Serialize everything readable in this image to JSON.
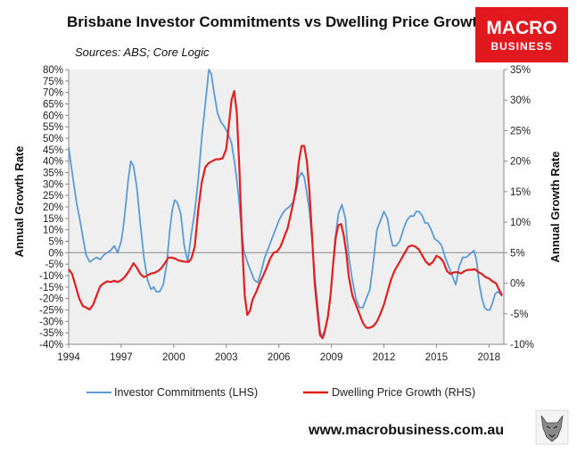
{
  "chart_data": {
    "type": "line",
    "title": "Brisbane Investor Commitments vs Dwelling Price Growth",
    "subtitle": "Sources: ABS; Core Logic",
    "ylabel_left": "Annual Growth Rate",
    "ylabel_right": "Annual Growth Rate",
    "x_range": [
      1994.0,
      2018.85
    ],
    "x_ticks": [
      1994,
      1997,
      2000,
      2003,
      2006,
      2009,
      2012,
      2015,
      2018
    ],
    "x_tick_labels": [
      "1994",
      "1997",
      "2000",
      "2003",
      "2006",
      "2009",
      "2012",
      "2015",
      "2018"
    ],
    "ylim_left": [
      -40,
      80
    ],
    "y_ticks_left": [
      80,
      75,
      70,
      65,
      60,
      55,
      50,
      45,
      40,
      35,
      30,
      25,
      20,
      15,
      10,
      5,
      0,
      -5,
      -10,
      -15,
      -20,
      -25,
      -30,
      -35,
      -40
    ],
    "y_tick_labels_left": [
      "80%",
      "75%",
      "70%",
      "65%",
      "60%",
      "55%",
      "50%",
      "45%",
      "40%",
      "35%",
      "30%",
      "25%",
      "20%",
      "15%",
      "10%",
      "5%",
      "0%",
      "-5%",
      "-10%",
      "-15%",
      "-20%",
      "-25%",
      "-30%",
      "-35%",
      "-40%"
    ],
    "ylim_right": [
      -10,
      35
    ],
    "y_ticks_right": [
      35,
      30,
      25,
      20,
      15,
      10,
      5,
      0,
      -5,
      -10
    ],
    "y_tick_labels_right": [
      "35%",
      "30%",
      "25%",
      "20%",
      "15%",
      "10%",
      "5%",
      "0%",
      "-5%",
      "-10%"
    ],
    "grid": false,
    "legend_position": "bottom",
    "series": [
      {
        "name": "Investor Commitments (LHS)",
        "axis": "left",
        "color": "#5b9bd5",
        "x": [
          1994.0,
          1994.2,
          1994.45,
          1994.7,
          1994.85,
          1995.0,
          1995.2,
          1995.4,
          1995.6,
          1995.8,
          1996.0,
          1996.2,
          1996.4,
          1996.6,
          1996.8,
          1997.0,
          1997.1,
          1997.25,
          1997.4,
          1997.55,
          1997.7,
          1997.9,
          1998.1,
          1998.3,
          1998.5,
          1998.7,
          1998.85,
          1999.0,
          1999.2,
          1999.4,
          1999.6,
          1999.75,
          1999.9,
          2000.05,
          2000.2,
          2000.4,
          2000.6,
          2000.8,
          2001.0,
          2001.2,
          2001.4,
          2001.6,
          2001.8,
          2001.9,
          2002.0,
          2002.15,
          2002.3,
          2002.5,
          2002.7,
          2002.9,
          2003.1,
          2003.3,
          2003.5,
          2003.7,
          2003.85,
          2004.0,
          2004.2,
          2004.4,
          2004.6,
          2004.8,
          2005.0,
          2005.2,
          2005.4,
          2005.6,
          2005.8,
          2006.0,
          2006.2,
          2006.4,
          2006.6,
          2006.8,
          2007.0,
          2007.15,
          2007.3,
          2007.45,
          2007.6,
          2007.75,
          2007.9,
          2008.05,
          2008.2,
          2008.35,
          2008.5,
          2008.6,
          2008.7,
          2008.85,
          2009.0,
          2009.2,
          2009.4,
          2009.6,
          2009.8,
          2009.9,
          2010.0,
          2010.2,
          2010.4,
          2010.6,
          2010.8,
          2011.0,
          2011.2,
          2011.4,
          2011.6,
          2011.8,
          2012.0,
          2012.2,
          2012.35,
          2012.5,
          2012.7,
          2012.9,
          2013.1,
          2013.3,
          2013.5,
          2013.7,
          2013.85,
          2014.0,
          2014.2,
          2014.35,
          2014.5,
          2014.7,
          2014.9,
          2015.1,
          2015.3,
          2015.5,
          2015.7,
          2015.9,
          2016.1,
          2016.3,
          2016.5,
          2016.7,
          2016.85,
          2017.0,
          2017.15,
          2017.3,
          2017.45,
          2017.6,
          2017.75,
          2017.9,
          2018.05,
          2018.2,
          2018.35,
          2018.5,
          2018.65,
          2018.75
        ],
        "y": [
          46,
          35,
          22,
          12,
          5,
          -1,
          -4,
          -3,
          -2,
          -3,
          -1,
          0,
          1,
          3,
          0,
          5,
          10,
          20,
          32,
          40,
          38,
          28,
          12,
          -2,
          -12,
          -16,
          -15,
          -17,
          -17,
          -14,
          -5,
          8,
          18,
          23,
          22,
          17,
          3,
          -4,
          8,
          18,
          32,
          50,
          65,
          72,
          80,
          78,
          70,
          61,
          57,
          55,
          52,
          48,
          38,
          25,
          12,
          1,
          -4,
          -8,
          -12,
          -13,
          -8,
          -2,
          2,
          6,
          10,
          14,
          17,
          19,
          20,
          22,
          27,
          33,
          35,
          33,
          26,
          18,
          5,
          -10,
          -22,
          -34,
          -37,
          -36,
          -32,
          -26,
          -15,
          5,
          17,
          21,
          15,
          6,
          -2,
          -12,
          -20,
          -24,
          -24,
          -20,
          -16,
          -4,
          10,
          14,
          18,
          15,
          8,
          3,
          3,
          5,
          10,
          14,
          16,
          16,
          18,
          18,
          16,
          13,
          13,
          10,
          6,
          5,
          3,
          -2,
          -6,
          -10,
          -14,
          -6,
          -2,
          -2,
          -1,
          0,
          1,
          -4,
          -14,
          -20,
          -24,
          -25,
          -25,
          -22,
          -18,
          -17,
          -18,
          -19
        ]
      },
      {
        "name": "Dwelling Price Growth (RHS)",
        "axis": "right",
        "color": "#e02020",
        "x": [
          1994.0,
          1994.2,
          1994.4,
          1994.6,
          1994.8,
          1995.0,
          1995.2,
          1995.4,
          1995.6,
          1995.8,
          1996.0,
          1996.2,
          1996.4,
          1996.6,
          1996.8,
          1997.0,
          1997.2,
          1997.4,
          1997.55,
          1997.7,
          1997.9,
          1998.1,
          1998.3,
          1998.5,
          1998.7,
          1998.9,
          1999.1,
          1999.3,
          1999.5,
          1999.7,
          1999.9,
          2000.1,
          2000.3,
          2000.5,
          2000.7,
          2000.85,
          2001.0,
          2001.2,
          2001.4,
          2001.6,
          2001.8,
          2002.0,
          2002.2,
          2002.4,
          2002.6,
          2002.8,
          2003.0,
          2003.15,
          2003.3,
          2003.45,
          2003.6,
          2003.75,
          2003.9,
          2004.05,
          2004.2,
          2004.35,
          2004.5,
          2004.7,
          2004.9,
          2005.1,
          2005.3,
          2005.5,
          2005.7,
          2005.9,
          2006.1,
          2006.3,
          2006.5,
          2006.7,
          2006.85,
          2007.0,
          2007.15,
          2007.3,
          2007.45,
          2007.6,
          2007.75,
          2007.9,
          2008.05,
          2008.2,
          2008.35,
          2008.5,
          2008.65,
          2008.8,
          2008.95,
          2009.1,
          2009.25,
          2009.4,
          2009.55,
          2009.7,
          2009.85,
          2010.0,
          2010.2,
          2010.4,
          2010.6,
          2010.8,
          2011.0,
          2011.2,
          2011.4,
          2011.6,
          2011.8,
          2012.0,
          2012.2,
          2012.4,
          2012.6,
          2012.8,
          2013.0,
          2013.2,
          2013.4,
          2013.6,
          2013.8,
          2014.0,
          2014.2,
          2014.4,
          2014.6,
          2014.8,
          2015.0,
          2015.2,
          2015.4,
          2015.6,
          2015.8,
          2016.0,
          2016.2,
          2016.4,
          2016.6,
          2016.8,
          2017.0,
          2017.2,
          2017.4,
          2017.6,
          2017.8,
          2018.0,
          2018.2,
          2018.4,
          2018.6,
          2018.75
        ],
        "y": [
          2.3,
          1.5,
          -0.5,
          -2.5,
          -3.7,
          -4.0,
          -4.3,
          -3.5,
          -2.0,
          -0.5,
          0,
          0.3,
          0.2,
          0.4,
          0.2,
          0.5,
          1.0,
          1.8,
          2.5,
          3.3,
          2.5,
          1.5,
          1.0,
          1.3,
          1.6,
          1.7,
          2.0,
          2.5,
          3.3,
          4.2,
          4.2,
          4.0,
          3.7,
          3.6,
          3.5,
          3.5,
          4.0,
          6.0,
          12.0,
          16.5,
          19.0,
          19.7,
          20.0,
          20.3,
          20.3,
          20.5,
          22.0,
          26.0,
          30.0,
          31.5,
          28.0,
          18.5,
          7.0,
          -2.0,
          -5.2,
          -4.5,
          -2.7,
          -1.5,
          0,
          1.2,
          2.5,
          4.0,
          5.0,
          5.2,
          6.0,
          7.5,
          9.0,
          11.5,
          13.5,
          16.0,
          20.0,
          22.5,
          22.5,
          20.0,
          15.0,
          7.5,
          0,
          -4.5,
          -8.5,
          -9.0,
          -7.5,
          -5.5,
          -2.0,
          3.0,
          7.5,
          9.5,
          9.7,
          8.0,
          5.0,
          1.0,
          -2.0,
          -3.5,
          -5.0,
          -6.5,
          -7.3,
          -7.3,
          -7.0,
          -6.3,
          -5.0,
          -3.5,
          -1.5,
          0.5,
          2.0,
          3.0,
          4.0,
          5.0,
          6.0,
          6.2,
          6.0,
          5.5,
          4.5,
          3.5,
          3.0,
          3.5,
          4.5,
          4.2,
          3.5,
          2.0,
          1.5,
          1.8,
          1.8,
          1.6,
          2.0,
          2.2,
          2.2,
          2.3,
          1.8,
          1.5,
          1.0,
          0.8,
          0.3,
          0.0,
          -1.2,
          -2.0
        ]
      }
    ]
  },
  "branding": {
    "logo_line1": "MACRO",
    "logo_line2": "BUSINESS",
    "logo_color": "#e1191f",
    "website": "www.macrobusiness.com.au",
    "mascot_icon": "wolf-head-icon"
  }
}
